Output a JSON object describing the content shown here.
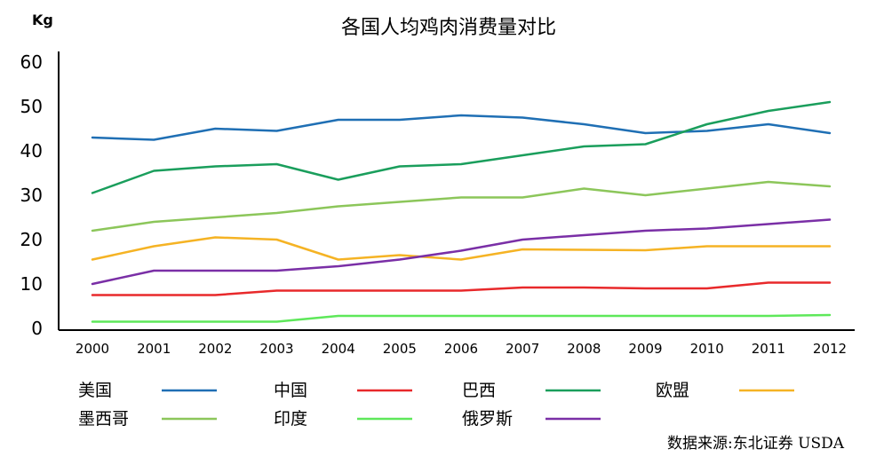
{
  "chart_data": {
    "type": "line",
    "title": "各国人均鸡肉消费量对比",
    "ylabel": "Kg",
    "xlabel": "",
    "x": [
      "2000",
      "2001",
      "2002",
      "2003",
      "2004",
      "2005",
      "2006",
      "2007",
      "2008",
      "2009",
      "2010",
      "2011",
      "2012"
    ],
    "y_ticks": [
      "0",
      "10",
      "20",
      "30",
      "40",
      "50",
      "60"
    ],
    "ylim": [
      0,
      60
    ],
    "grid": false,
    "legend_position": "bottom",
    "source": "数据来源:东北证券 USDA",
    "series": [
      {
        "name": "美国",
        "color": "#1f6fb4",
        "values": [
          43,
          42.5,
          45,
          44.5,
          47,
          47,
          48,
          47.5,
          46,
          44,
          44.5,
          46,
          44
        ]
      },
      {
        "name": "中国",
        "color": "#e8292b",
        "values": [
          7.5,
          7.5,
          7.5,
          8.5,
          8.5,
          8.5,
          8.5,
          9.2,
          9.2,
          9.0,
          9.0,
          10.3,
          10.3
        ]
      },
      {
        "name": "巴西",
        "color": "#1a9e5c",
        "values": [
          30.5,
          35.5,
          36.5,
          37,
          33.5,
          36.5,
          37,
          39,
          41,
          41.5,
          46,
          49,
          51
        ]
      },
      {
        "name": "欧盟",
        "color": "#f5b324",
        "values": [
          15.5,
          18.5,
          20.5,
          20,
          15.5,
          16.5,
          15.5,
          17.8,
          17.7,
          17.6,
          18.5,
          18.5,
          18.5
        ]
      },
      {
        "name": "墨西哥",
        "color": "#8cc65a",
        "values": [
          22,
          24,
          25,
          26,
          27.5,
          28.5,
          29.5,
          29.5,
          31.5,
          30,
          31.5,
          33,
          32
        ]
      },
      {
        "name": "印度",
        "color": "#5ee85a",
        "values": [
          1.5,
          1.5,
          1.5,
          1.5,
          2.8,
          2.8,
          2.8,
          2.8,
          2.8,
          2.8,
          2.8,
          2.8,
          3.0
        ]
      },
      {
        "name": "俄罗斯",
        "color": "#7a2fa6",
        "values": [
          10,
          13,
          13,
          13,
          14,
          15.5,
          17.5,
          20,
          21,
          22,
          22.5,
          23.5,
          24.5
        ]
      }
    ]
  }
}
